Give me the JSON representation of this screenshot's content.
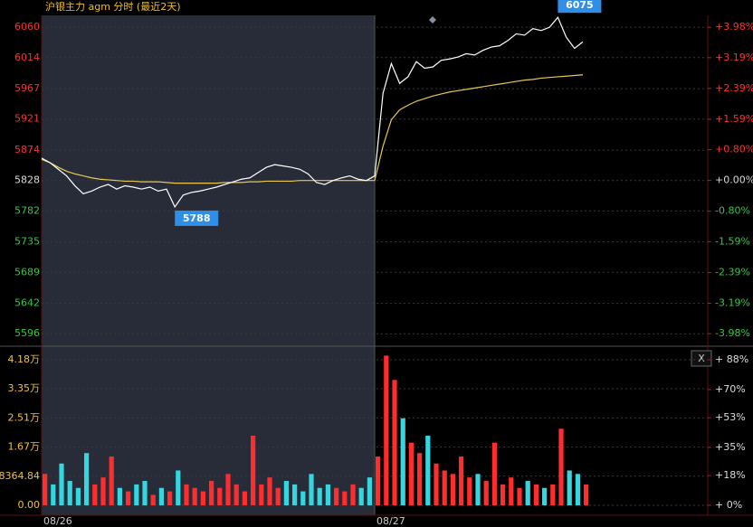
{
  "chart_data": {
    "type": "intraday",
    "title": "沪银主力 agm 分时 (最近2天)",
    "categories": [
      "08/26",
      null,
      null,
      null,
      null,
      null,
      null,
      null,
      null,
      null,
      null,
      null,
      null,
      null,
      null,
      null,
      null,
      null,
      null,
      null,
      null,
      null,
      null,
      null,
      null,
      null,
      null,
      null,
      null,
      null,
      null,
      null,
      null,
      null,
      null,
      null,
      null,
      null,
      null,
      null,
      "08/27",
      null,
      null,
      null,
      null,
      null,
      null,
      null,
      null,
      null,
      null,
      null,
      null,
      null,
      null,
      null,
      null,
      null,
      null,
      null,
      null,
      null,
      null,
      null,
      null,
      null,
      null,
      null,
      null,
      null,
      null,
      null,
      null,
      null,
      null,
      null,
      null,
      null,
      null,
      null
    ],
    "price": {
      "color": "#ffffff",
      "values": [
        5862,
        5855,
        5845,
        5835,
        5820,
        5808,
        5812,
        5818,
        5822,
        5815,
        5820,
        5818,
        5815,
        5818,
        5812,
        5815,
        5788,
        5806,
        5810,
        5812,
        5815,
        5818,
        5822,
        5826,
        5830,
        5832,
        5840,
        5848,
        5852,
        5850,
        5848,
        5845,
        5838,
        5825,
        5822,
        5828,
        5832,
        5835,
        5830,
        5828,
        5835,
        5960,
        6005,
        5975,
        5985,
        6008,
        5998,
        6000,
        6010,
        6012,
        6015,
        6020,
        6018,
        6025,
        6030,
        6032,
        6040,
        6050,
        6048,
        6058,
        6055,
        6060,
        6075,
        6045,
        6028,
        6038,
        null,
        null,
        null,
        null,
        null,
        null,
        null,
        null,
        null,
        null,
        null,
        null,
        null,
        null
      ]
    },
    "average": {
      "color": "#e8c84a",
      "values": [
        5860,
        5855,
        5848,
        5842,
        5838,
        5835,
        5832,
        5830,
        5829,
        5828,
        5827,
        5827,
        5826,
        5826,
        5826,
        5825,
        5824,
        5824,
        5824,
        5824,
        5824,
        5824,
        5825,
        5825,
        5825,
        5826,
        5826,
        5827,
        5827,
        5827,
        5827,
        5828,
        5828,
        5828,
        5828,
        5828,
        5828,
        5828,
        5828,
        5828,
        5828,
        5880,
        5920,
        5935,
        5942,
        5948,
        5952,
        5956,
        5959,
        5962,
        5964,
        5966,
        5968,
        5970,
        5972,
        5974,
        5976,
        5978,
        5980,
        5981,
        5983,
        5984,
        5985,
        5986,
        5987,
        5988,
        null,
        null,
        null,
        null,
        null,
        null,
        null,
        null,
        null,
        null,
        null,
        null,
        null,
        null
      ]
    },
    "ylim": [
      5584,
      6078
    ],
    "yticks": [
      6060,
      6014,
      5967,
      5921,
      5874,
      5828,
      5782,
      5735,
      5689,
      5642,
      5596
    ],
    "reference": 5828,
    "y2lim": [
      -4.19,
      4.29
    ],
    "y2ticks": [
      {
        "value": 3.98,
        "label": "+3.98%"
      },
      {
        "value": 3.19,
        "label": "+3.19%"
      },
      {
        "value": 2.39,
        "label": "+2.39%"
      },
      {
        "value": 1.59,
        "label": "+1.59%"
      },
      {
        "value": 0.8,
        "label": "+0.80%"
      },
      {
        "value": 0,
        "label": "+0.00%"
      },
      {
        "value": -0.8,
        "label": "-0.80%"
      },
      {
        "value": -1.59,
        "label": "-1.59%"
      },
      {
        "value": -2.39,
        "label": "-2.39%"
      },
      {
        "value": -3.19,
        "label": "-3.19%"
      },
      {
        "value": -3.98,
        "label": "-3.98%"
      }
    ],
    "low_label": 5788,
    "high_label": 6075,
    "volume": {
      "up_color": "#ff2d2d",
      "down_color": "#36d6e0",
      "values": [
        9000,
        6000,
        12000,
        7000,
        5000,
        15000,
        6000,
        8000,
        14000,
        5000,
        4000,
        6000,
        7000,
        3000,
        5000,
        4000,
        10000,
        6000,
        5000,
        4000,
        7000,
        5000,
        9000,
        6000,
        4000,
        20000,
        6000,
        8000,
        5000,
        7000,
        6000,
        4000,
        9000,
        5000,
        6000,
        5000,
        4000,
        6000,
        5000,
        8000,
        14000,
        43000,
        36000,
        25000,
        18000,
        15000,
        20000,
        12000,
        10000,
        9000,
        14000,
        8000,
        9000,
        7000,
        18000,
        6000,
        8000,
        5000,
        7000,
        6000,
        5000,
        6000,
        22000,
        10000,
        9000,
        6000,
        null,
        null,
        null,
        null,
        null,
        null,
        null,
        null,
        null,
        null,
        null,
        null,
        null,
        null
      ],
      "ylim": [
        0,
        44400
      ],
      "yticks": [
        {
          "value": 41800,
          "label": "4.18万"
        },
        {
          "value": 33500,
          "label": "3.35万"
        },
        {
          "value": 25100,
          "label": "2.51万"
        },
        {
          "value": 16700,
          "label": "1.67万"
        },
        8364.84,
        {
          "value": 0,
          "label": "0.00"
        }
      ],
      "y2lim": [
        0,
        93.5
      ],
      "y2ticks": [
        {
          "value": 88,
          "label": "+ 88%"
        },
        {
          "value": 70,
          "label": "+70%"
        },
        {
          "value": 53,
          "label": "+53%"
        },
        {
          "value": 35,
          "label": "+35%"
        },
        {
          "value": 18,
          "label": "+18%"
        },
        {
          "value": 0,
          "label": "+ 0%"
        }
      ]
    },
    "close_button": "X"
  }
}
